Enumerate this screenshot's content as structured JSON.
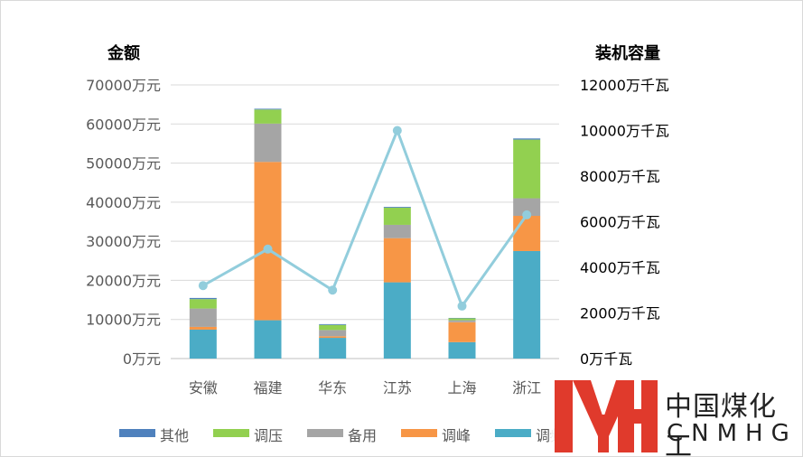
{
  "chart_data": {
    "type": "bar",
    "stacked": true,
    "categories": [
      "安徽",
      "福建",
      "华东",
      "江苏",
      "上海",
      "浙江"
    ],
    "series": [
      {
        "name": "调频",
        "color": "#4bacc6",
        "values": [
          7400,
          9800,
          5300,
          19500,
          4200,
          27500
        ]
      },
      {
        "name": "调峰",
        "color": "#f79646",
        "values": [
          700,
          40500,
          400,
          11300,
          5100,
          9000
        ]
      },
      {
        "name": "备用",
        "color": "#a5a5a5",
        "values": [
          4700,
          9800,
          1600,
          3400,
          500,
          4500
        ]
      },
      {
        "name": "调压",
        "color": "#92d050",
        "values": [
          2400,
          3600,
          1300,
          4400,
          500,
          15000
        ]
      },
      {
        "name": "其他",
        "color": "#4f81bd",
        "values": [
          300,
          200,
          200,
          200,
          100,
          300
        ]
      }
    ],
    "line_series": {
      "color": "#92cddc",
      "axis": "right",
      "values": [
        3200,
        4800,
        3000,
        10000,
        2300,
        6300
      ]
    },
    "left_axis": {
      "title": "金额",
      "ylim": [
        0,
        70000
      ],
      "ticks": [
        "0万元",
        "10000万元",
        "20000万元",
        "30000万元",
        "40000万元",
        "50000万元",
        "60000万元",
        "70000万元"
      ]
    },
    "right_axis": {
      "title": "装机容量",
      "ylim": [
        0,
        12000
      ],
      "ticks": [
        "0万千瓦",
        "2000万千瓦",
        "4000万千瓦",
        "6000万千瓦",
        "8000万千瓦",
        "10000万千瓦",
        "12000万千瓦"
      ]
    },
    "legend": [
      "其他",
      "调压",
      "备用",
      "调峰",
      "调频"
    ],
    "legend_position": "bottom",
    "grid": true
  },
  "watermark": {
    "logo": "MH",
    "text_cn": "中国煤化工",
    "text_en": "CNMHG",
    "color": "#e03a2c"
  }
}
